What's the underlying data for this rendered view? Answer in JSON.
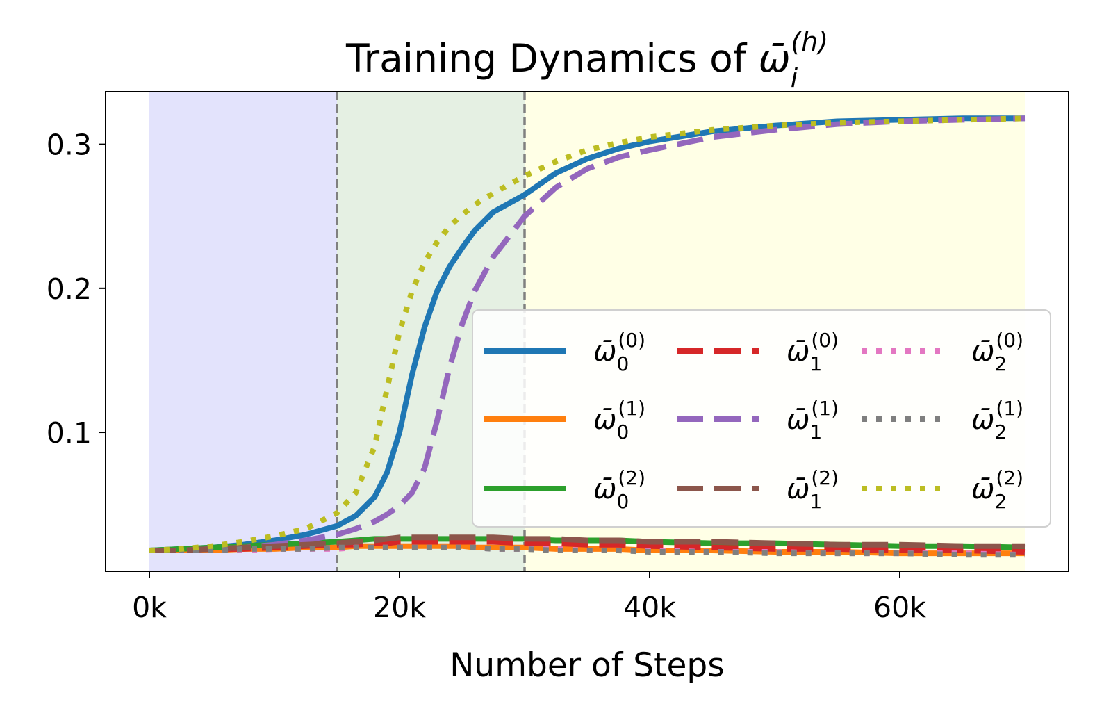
{
  "chart_data": {
    "type": "line",
    "title": "Training Dynamics of ω̄_i^(h)",
    "title_parts": {
      "prefix": "Training Dynamics of ",
      "symbol": "ω̄",
      "sub": "i",
      "sup": "(h)"
    },
    "xlabel": "Number of Steps",
    "ylabel": "",
    "xlim": [
      -3500,
      73500
    ],
    "ylim": [
      0.0035,
      0.3365
    ],
    "x_ticks": [
      0,
      20000,
      40000,
      60000
    ],
    "x_tick_labels": [
      "0k",
      "20k",
      "40k",
      "60k"
    ],
    "y_ticks": [
      0.1,
      0.2,
      0.3
    ],
    "y_tick_labels": [
      "0.1",
      "0.2",
      "0.3"
    ],
    "grid": false,
    "legend_position": "center-right",
    "legend_columns": 3,
    "shaded_regions": [
      {
        "x": [
          0,
          15000
        ],
        "color": "#e3e3fc"
      },
      {
        "x": [
          15000,
          30000
        ],
        "color": "#e5f0e3"
      },
      {
        "x": [
          30000,
          70000
        ],
        "color": "#ffffe6"
      }
    ],
    "vertical_lines": [
      15000,
      30000
    ],
    "x": [
      0,
      2500,
      5000,
      7500,
      10000,
      12500,
      15000,
      16500,
      18000,
      19000,
      20000,
      21000,
      22000,
      23000,
      24000,
      25000,
      26000,
      27500,
      30000,
      32500,
      35000,
      37500,
      40000,
      45000,
      50000,
      55000,
      60000,
      65000,
      70000
    ],
    "series": [
      {
        "name": "ω̄_0^(0)",
        "label": {
          "sub": "0",
          "sup": "(0)"
        },
        "color": "#1f77b4",
        "style": "solid",
        "values": [
          0.018,
          0.019,
          0.02,
          0.022,
          0.025,
          0.029,
          0.035,
          0.042,
          0.055,
          0.072,
          0.1,
          0.14,
          0.173,
          0.198,
          0.215,
          0.228,
          0.24,
          0.253,
          0.265,
          0.28,
          0.29,
          0.297,
          0.302,
          0.309,
          0.313,
          0.316,
          0.317,
          0.318,
          0.318
        ]
      },
      {
        "name": "ω̄_0^(1)",
        "label": {
          "sub": "0",
          "sup": "(1)"
        },
        "color": "#ff7f0e",
        "style": "solid",
        "values": [
          0.018,
          0.018,
          0.018,
          0.019,
          0.019,
          0.02,
          0.02,
          0.021,
          0.021,
          0.021,
          0.021,
          0.021,
          0.021,
          0.021,
          0.021,
          0.021,
          0.02,
          0.02,
          0.02,
          0.019,
          0.019,
          0.019,
          0.018,
          0.018,
          0.017,
          0.017,
          0.016,
          0.016,
          0.016
        ]
      },
      {
        "name": "ω̄_0^(2)",
        "label": {
          "sub": "0",
          "sup": "(2)"
        },
        "color": "#2ca02c",
        "style": "solid",
        "values": [
          0.018,
          0.019,
          0.02,
          0.021,
          0.022,
          0.023,
          0.024,
          0.025,
          0.026,
          0.026,
          0.026,
          0.026,
          0.026,
          0.026,
          0.026,
          0.026,
          0.026,
          0.026,
          0.026,
          0.025,
          0.025,
          0.025,
          0.024,
          0.023,
          0.023,
          0.022,
          0.021,
          0.021,
          0.02
        ]
      },
      {
        "name": "ω̄_1^(0)",
        "label": {
          "sub": "1",
          "sup": "(0)"
        },
        "color": "#d62728",
        "style": "dashed",
        "values": [
          0.018,
          0.018,
          0.019,
          0.019,
          0.02,
          0.021,
          0.022,
          0.022,
          0.023,
          0.023,
          0.024,
          0.024,
          0.024,
          0.024,
          0.024,
          0.024,
          0.024,
          0.024,
          0.023,
          0.023,
          0.022,
          0.022,
          0.021,
          0.02,
          0.019,
          0.019,
          0.018,
          0.018,
          0.017
        ]
      },
      {
        "name": "ω̄_1^(1)",
        "label": {
          "sub": "1",
          "sup": "(1)"
        },
        "color": "#9467bd",
        "style": "dashed",
        "values": [
          0.018,
          0.018,
          0.019,
          0.02,
          0.022,
          0.025,
          0.029,
          0.033,
          0.038,
          0.043,
          0.049,
          0.058,
          0.075,
          0.108,
          0.145,
          0.175,
          0.198,
          0.222,
          0.25,
          0.27,
          0.283,
          0.291,
          0.296,
          0.305,
          0.31,
          0.314,
          0.316,
          0.317,
          0.318
        ]
      },
      {
        "name": "ω̄_1^(2)",
        "label": {
          "sub": "1",
          "sup": "(2)"
        },
        "color": "#8c564b",
        "style": "dashed",
        "values": [
          0.018,
          0.018,
          0.019,
          0.02,
          0.021,
          0.022,
          0.023,
          0.024,
          0.025,
          0.026,
          0.027,
          0.027,
          0.027,
          0.027,
          0.027,
          0.027,
          0.027,
          0.027,
          0.026,
          0.026,
          0.025,
          0.025,
          0.024,
          0.024,
          0.023,
          0.022,
          0.022,
          0.021,
          0.021
        ]
      },
      {
        "name": "ω̄_2^(0)",
        "label": {
          "sub": "2",
          "sup": "(0)"
        },
        "color": "#e377c2",
        "style": "dotted",
        "values": [
          0.018,
          0.018,
          0.018,
          0.018,
          0.019,
          0.019,
          0.019,
          0.02,
          0.02,
          0.02,
          0.02,
          0.02,
          0.02,
          0.02,
          0.02,
          0.02,
          0.02,
          0.019,
          0.019,
          0.019,
          0.018,
          0.018,
          0.018,
          0.017,
          0.017,
          0.016,
          0.016,
          0.016,
          0.015
        ]
      },
      {
        "name": "ω̄_2^(1)",
        "label": {
          "sub": "2",
          "sup": "(1)"
        },
        "color": "#7f7f7f",
        "style": "dotted",
        "values": [
          0.018,
          0.018,
          0.018,
          0.019,
          0.019,
          0.019,
          0.02,
          0.02,
          0.02,
          0.02,
          0.02,
          0.02,
          0.02,
          0.02,
          0.02,
          0.02,
          0.02,
          0.019,
          0.019,
          0.018,
          0.018,
          0.018,
          0.017,
          0.017,
          0.016,
          0.016,
          0.016,
          0.015,
          0.015
        ]
      },
      {
        "name": "ω̄_2^(2)",
        "label": {
          "sub": "2",
          "sup": "(2)"
        },
        "color": "#bcbd22",
        "style": "dotted",
        "values": [
          0.018,
          0.019,
          0.021,
          0.024,
          0.028,
          0.033,
          0.044,
          0.058,
          0.09,
          0.13,
          0.17,
          0.198,
          0.218,
          0.232,
          0.243,
          0.251,
          0.258,
          0.266,
          0.278,
          0.288,
          0.296,
          0.301,
          0.305,
          0.31,
          0.313,
          0.315,
          0.316,
          0.317,
          0.318
        ]
      }
    ]
  }
}
